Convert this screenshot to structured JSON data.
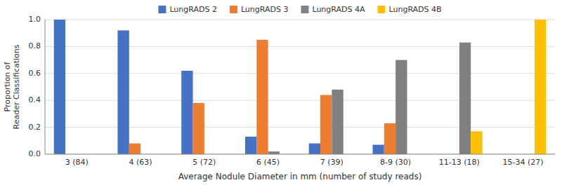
{
  "chart_data": {
    "type": "bar",
    "xlabel": "Average Nodule Diameter in mm (number of study reads)",
    "ylabel": "Proportion of\nReader Classifications",
    "categories": [
      "3 (84)",
      "4 (63)",
      "5 (72)",
      "6 (45)",
      "7 (39)",
      "8-9 (30)",
      "11-13 (18)",
      "15-34 (27)"
    ],
    "series": [
      {
        "name": "LungRADS 2",
        "color": "#4472C4",
        "values": [
          1.0,
          0.92,
          0.62,
          0.13,
          0.08,
          0.07,
          0.0,
          0.0
        ]
      },
      {
        "name": "LungRADS 3",
        "color": "#ED7D31",
        "values": [
          0.0,
          0.08,
          0.38,
          0.85,
          0.44,
          0.23,
          0.0,
          0.0
        ]
      },
      {
        "name": "LungRADS 4A",
        "color": "#808080",
        "values": [
          0.0,
          0.0,
          0.0,
          0.02,
          0.48,
          0.7,
          0.83,
          0.0
        ]
      },
      {
        "name": "LungRADS 4B",
        "color": "#FFC000",
        "values": [
          0.0,
          0.0,
          0.0,
          0.0,
          0.0,
          0.0,
          0.17,
          1.0
        ]
      }
    ],
    "ylim": [
      0,
      1.0
    ],
    "yticks": [
      {
        "value": 0.0,
        "label": "0.0"
      },
      0.2,
      0.4,
      0.6,
      0.8,
      {
        "value": 1.0,
        "label": "1.0"
      }
    ],
    "grid": true,
    "legend": "top"
  }
}
